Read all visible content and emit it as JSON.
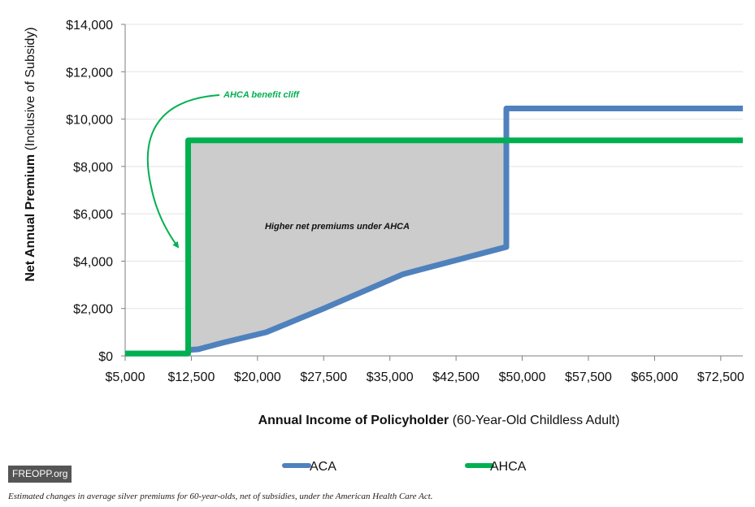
{
  "chart_data": {
    "type": "line",
    "ylabel_bold": "Net Annual Premium",
    "ylabel_rest": " (Inclusive of Subsidy)",
    "xlabel_bold": "Annual Income of Policyholder",
    "xlabel_rest": " (60-Year-Old Childless Adult)",
    "xlim": [
      5000,
      75000
    ],
    "ylim": [
      0,
      14000
    ],
    "x_ticks": [
      5000,
      12500,
      20000,
      27500,
      35000,
      42500,
      50000,
      57500,
      65000,
      72500
    ],
    "x_tick_labels": [
      "$5,000",
      "$12,500",
      "$20,000",
      "$27,500",
      "$35,000",
      "$42,500",
      "$50,000",
      "$57,500",
      "$65,000",
      "$72,500"
    ],
    "y_ticks": [
      0,
      2000,
      4000,
      6000,
      8000,
      10000,
      12000,
      14000
    ],
    "y_tick_labels": [
      "$0",
      "$2,000",
      "$4,000",
      "$6,000",
      "$8,000",
      "$10,000",
      "$12,000",
      "$14,000"
    ],
    "grid": true,
    "legend_position": "bottom",
    "series": [
      {
        "name": "ACA",
        "color": "#4f81bd",
        "x": [
          5000,
          12100,
          12140,
          13300,
          16000,
          21000,
          27500,
          36500,
          48200,
          48200,
          75000
        ],
        "y": [
          100,
          100,
          250,
          280,
          550,
          1000,
          2000,
          3450,
          4600,
          10450,
          10450
        ]
      },
      {
        "name": "AHCA",
        "color": "#00b050",
        "x": [
          5000,
          12140,
          12140,
          75000
        ],
        "y": [
          100,
          100,
          9100,
          9100
        ]
      }
    ],
    "shaded_region": {
      "color": "#cccccc",
      "label": "Higher net premiums under AHCA"
    },
    "annotations": [
      {
        "text": "AHCA benefit cliff",
        "color": "#00b050"
      }
    ]
  },
  "footer": {
    "badge": "FREOPP.org",
    "caption": "Estimated changes in average silver premiums for 60-year-olds, net of subsidies, under the American Health Care Act."
  }
}
